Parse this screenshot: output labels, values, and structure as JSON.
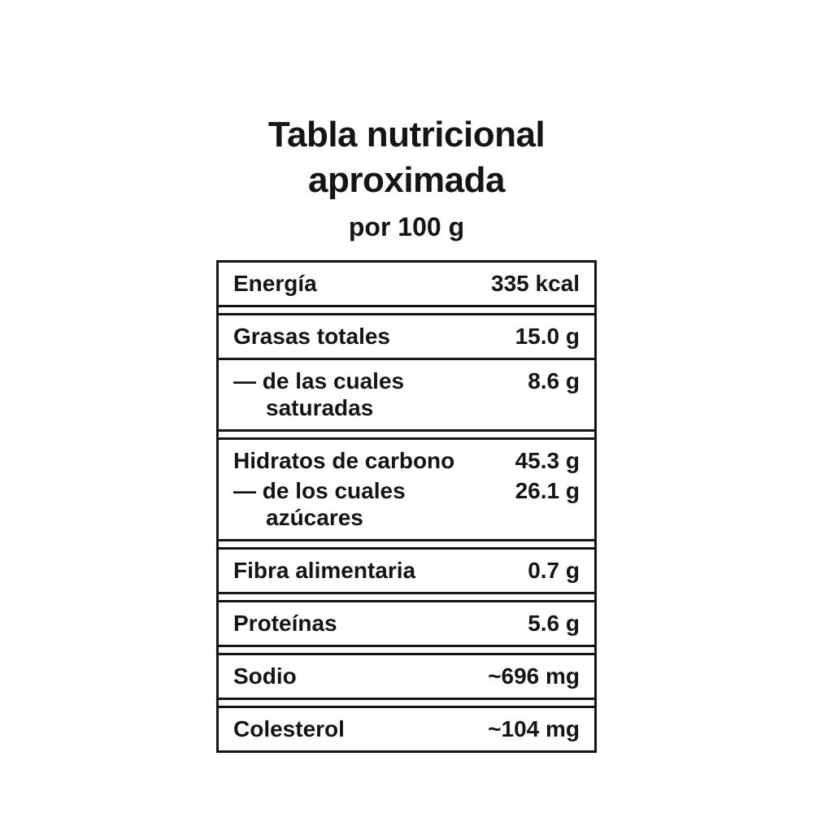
{
  "header": {
    "title_line1": "Tabla nutricional",
    "title_line2": "aproximada",
    "subtitle": "por 100 g"
  },
  "colors": {
    "ink": "#151515",
    "background": "#ffffff"
  },
  "table": {
    "groups": [
      {
        "name": "energia",
        "rows": [
          {
            "label": "Energía",
            "value": "335 kcal"
          }
        ]
      },
      {
        "name": "grasas",
        "rows": [
          {
            "label": "Grasas totales",
            "value": "15.0 g"
          },
          {
            "label": "— de las cuales saturadas",
            "value": "8.6 g"
          }
        ]
      },
      {
        "name": "hidratos",
        "rows": [
          {
            "label": "Hidratos de carbono",
            "value": "45.3 g"
          },
          {
            "label": "— de los cuales azúcares",
            "value": "26.1 g"
          }
        ]
      },
      {
        "name": "fibra",
        "rows": [
          {
            "label": "Fibra alimentaria",
            "value": "0.7 g"
          }
        ]
      },
      {
        "name": "proteinas",
        "rows": [
          {
            "label": "Proteínas",
            "value": "5.6 g"
          }
        ]
      },
      {
        "name": "sodio",
        "rows": [
          {
            "label": "Sodio",
            "value": "~696 mg"
          }
        ]
      },
      {
        "name": "colesterol",
        "rows": [
          {
            "label": "Colesterol",
            "value": "~104 mg"
          }
        ]
      }
    ]
  }
}
